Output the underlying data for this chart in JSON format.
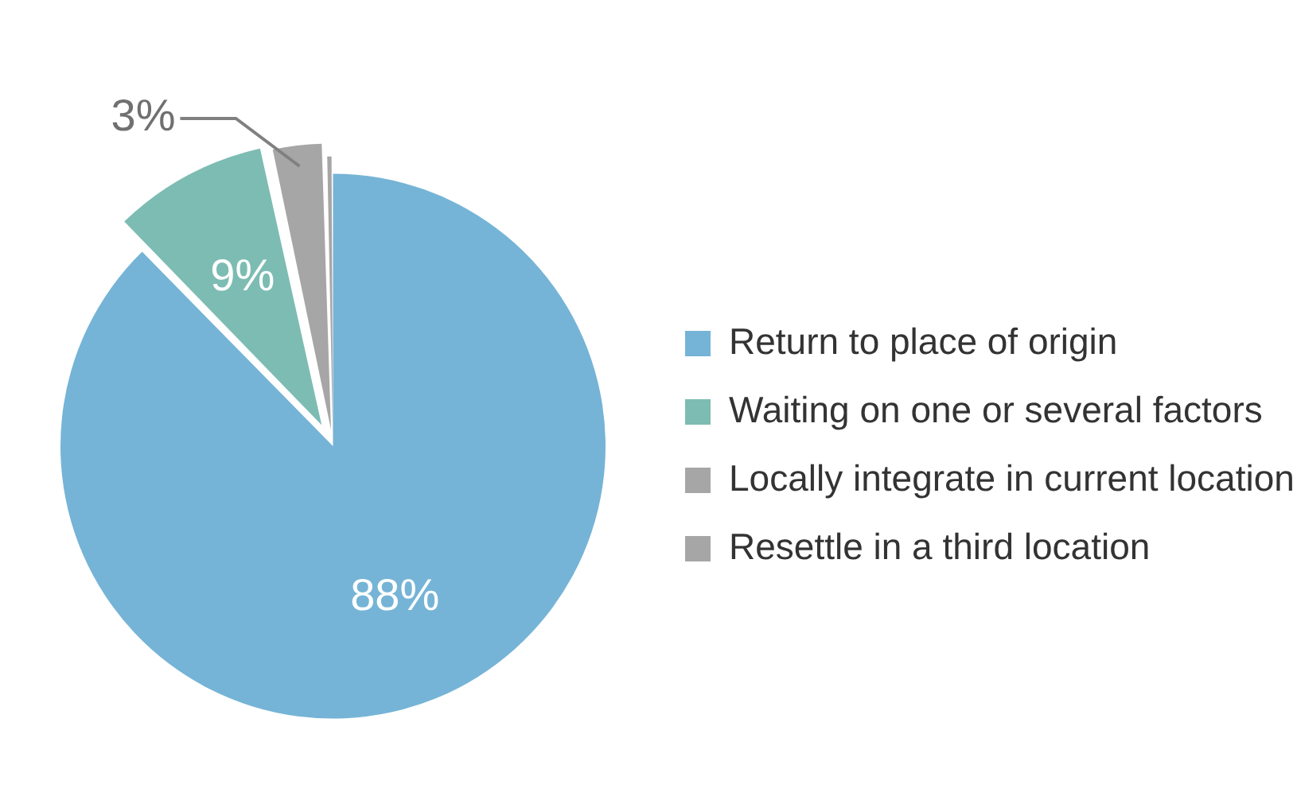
{
  "chart_data": {
    "type": "pie",
    "categories": [
      "Return to place of origin",
      "Waiting on one or several factors",
      "Locally integrate in current location",
      "Resettle in a third location"
    ],
    "values": [
      88,
      9,
      3,
      0.4
    ],
    "colors": [
      "#75b4d6",
      "#7dbcb3",
      "#a6a6a6",
      "#a6a6a6"
    ],
    "value_labels": [
      "88%",
      "9%",
      "3%",
      null
    ],
    "legend": "right"
  }
}
